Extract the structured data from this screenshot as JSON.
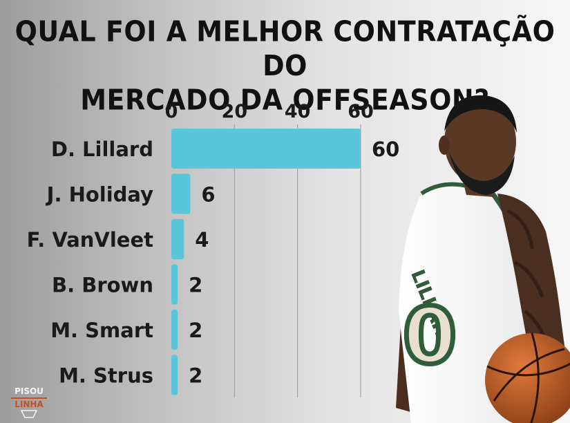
{
  "title_lines": [
    "QUAL FOI A MELHOR CONTRATAÇÃO DO",
    "MERCADO DA OFFSEASON?"
  ],
  "brand": {
    "line1": "PISOU",
    "line2": "LINHA"
  },
  "player_jersey": {
    "name": "LILLARD",
    "number": "0"
  },
  "colors": {
    "bar": "#5bc6da",
    "grid": "#9a9a9a",
    "text": "#1a1a1a",
    "accent": "#c0522b"
  },
  "chart_data": {
    "type": "bar",
    "orientation": "horizontal",
    "title": "QUAL FOI A MELHOR CONTRATAÇÃO DO MERCADO DA OFFSEASON?",
    "categories": [
      "D. Lillard",
      "J. Holiday",
      "F. VanVleet",
      "B. Brown",
      "M. Smart",
      "M. Strus"
    ],
    "values": [
      60,
      6,
      4,
      2,
      2,
      2
    ],
    "x_ticks": [
      0,
      20,
      40,
      60
    ],
    "xlim": [
      0,
      60
    ],
    "axis_position": "top",
    "grid": true,
    "xlabel": "",
    "ylabel": ""
  }
}
